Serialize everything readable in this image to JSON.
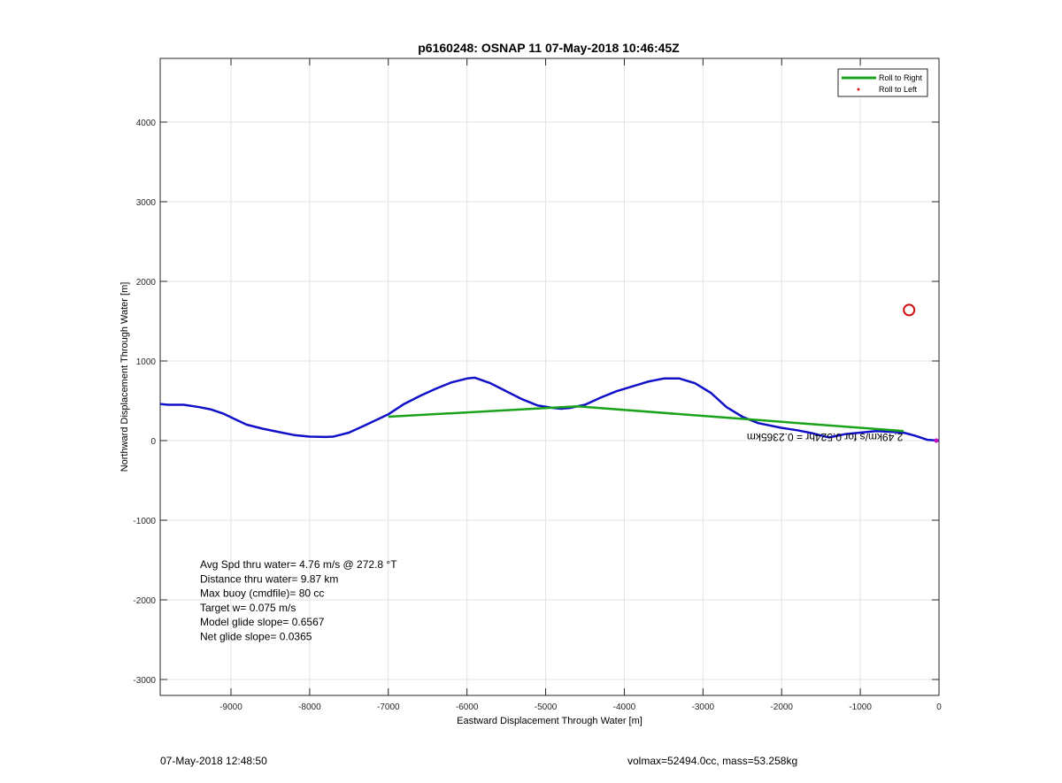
{
  "chart_data": {
    "type": "line",
    "title": "p6160248: OSNAP 11 07-May-2018 10:46:45Z",
    "xlabel": "Eastward Displacement Through Water [m]",
    "ylabel": "Northward Displacement Through Water [m]",
    "xlim": [
      -9900,
      0
    ],
    "ylim": [
      -3200,
      4800
    ],
    "xticks": [
      -9000,
      -8000,
      -7000,
      -6000,
      -5000,
      -4000,
      -3000,
      -2000,
      -1000,
      0
    ],
    "yticks": [
      -3000,
      -2000,
      -1000,
      0,
      1000,
      2000,
      3000,
      4000
    ],
    "grid": true,
    "legend_position": "top-right",
    "legend": [
      {
        "label": "Roll to Right",
        "color": "#1aa31a",
        "marker": "line"
      },
      {
        "label": "Roll to Left",
        "color": "#e01010",
        "marker": "dot"
      }
    ],
    "series": [
      {
        "color": "#1010c8",
        "x": [
          -9900,
          -9800,
          -9600,
          -9400,
          -9250,
          -9100,
          -8950,
          -8800,
          -8600,
          -8400,
          -8200,
          -8000,
          -7800,
          -7700,
          -7500,
          -7300,
          -7000,
          -6800,
          -6600,
          -6400,
          -6200,
          -6000,
          -5900,
          -5700,
          -5500,
          -5300,
          -5100,
          -4900,
          -4800,
          -4700,
          -4500,
          -4300,
          -4100,
          -3900,
          -3700,
          -3500,
          -3300,
          -3100,
          -2900,
          -2700,
          -2500,
          -2300,
          -2000,
          -1800,
          -1600,
          -1400,
          -1300,
          -1200,
          -1000,
          -800,
          -600,
          -450,
          -300,
          -150,
          0
        ],
        "y": [
          460,
          450,
          450,
          420,
          390,
          340,
          270,
          200,
          150,
          110,
          70,
          50,
          45,
          50,
          100,
          190,
          330,
          460,
          560,
          650,
          730,
          780,
          790,
          720,
          620,
          520,
          440,
          410,
          400,
          410,
          450,
          540,
          620,
          680,
          740,
          780,
          780,
          720,
          600,
          420,
          300,
          220,
          160,
          130,
          90,
          40,
          60,
          80,
          100,
          120,
          110,
          100,
          60,
          10,
          0
        ]
      },
      {
        "name": "Roll to Right",
        "color": "#1aa31a",
        "x": [
          -7000,
          -4600,
          -450
        ],
        "y": [
          300,
          430,
          120
        ]
      }
    ],
    "markers": [
      {
        "type": "circle",
        "x": -380,
        "y": 1640,
        "color": "#d01010"
      }
    ],
    "mirrored_annotation": "2.49km/s for 0.524hr = 0.2365km",
    "stats": [
      "Avg Spd thru water=  4.76 m/s @ 272.8 °T",
      "Distance thru water=  9.87 km",
      "Max buoy (cmdfile)= 80 cc",
      "Target w= 0.075 m/s",
      "Model glide slope= 0.6567",
      "Net glide slope= 0.0365"
    ]
  },
  "footer": {
    "timestamp": "07-May-2018 12:48:50",
    "info": "volmax=52494.0cc, mass=53.258kg"
  }
}
